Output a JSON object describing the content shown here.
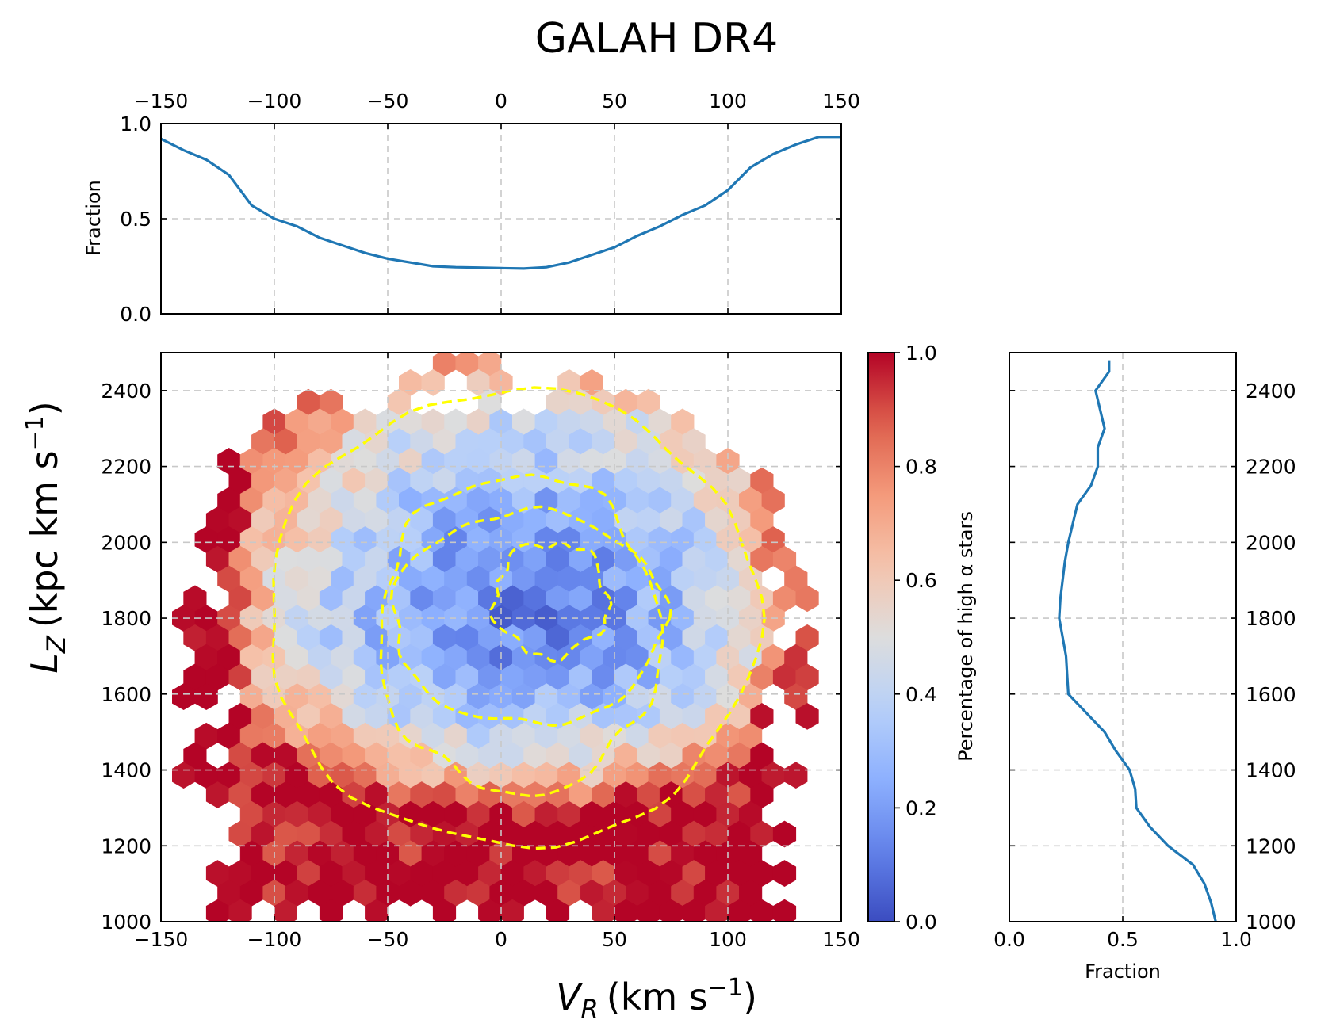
{
  "chart_data": [
    {
      "panel": "top-marginal",
      "type": "line",
      "title": "GALAH DR4",
      "xlabel": "",
      "ylabel": "Fraction",
      "xlim": [
        -150,
        150
      ],
      "ylim": [
        0,
        1
      ],
      "x_ticks": [
        "−150",
        "−100",
        "−50",
        "0",
        "50",
        "100",
        "150"
      ],
      "y_ticks": [
        "0.0",
        "0.5",
        "1.0"
      ],
      "grid": true,
      "color": "#1f77b4",
      "x": [
        -150,
        -140,
        -130,
        -120,
        -110,
        -100,
        -90,
        -80,
        -70,
        -60,
        -50,
        -40,
        -30,
        -20,
        -10,
        0,
        10,
        20,
        30,
        40,
        50,
        60,
        70,
        80,
        90,
        100,
        110,
        120,
        130,
        140,
        150
      ],
      "y": [
        0.92,
        0.86,
        0.81,
        0.73,
        0.57,
        0.5,
        0.46,
        0.4,
        0.36,
        0.32,
        0.29,
        0.27,
        0.25,
        0.245,
        0.243,
        0.24,
        0.238,
        0.245,
        0.27,
        0.31,
        0.35,
        0.41,
        0.46,
        0.52,
        0.57,
        0.65,
        0.77,
        0.84,
        0.89,
        0.93,
        0.93
      ]
    },
    {
      "panel": "main-hexbin",
      "type": "heatmap",
      "xlabel": "V",
      "xlabel_sub": "R",
      "xlabel_unit": "(km s",
      "xlabel_exp": "−1",
      "ylabel": "L",
      "ylabel_sub": "Z",
      "ylabel_unit": "(kpc km s",
      "ylabel_exp": "−1",
      "xlim": [
        -150,
        150
      ],
      "ylim": [
        1000,
        2500
      ],
      "x_ticks": [
        "−150",
        "−100",
        "−50",
        "0",
        "50",
        "100",
        "150"
      ],
      "y_ticks": [
        "1000",
        "1200",
        "1400",
        "1600",
        "1800",
        "2000",
        "2200",
        "2400"
      ],
      "grid": true,
      "colormap": "coolwarm",
      "colorbar_label": "Percentage of high α stars",
      "colorbar_ticks": [
        "0.0",
        "0.2",
        "0.4",
        "0.6",
        "0.8",
        "1.0"
      ],
      "clim": [
        0,
        1
      ],
      "hex_size_kms": 10,
      "fraction_model": "fraction rises from ~0.15 at (V_R=10, L_Z=1800) outward; >0.8 below L_Z=1250 and at |V_R|>120",
      "contour_color": "#ffff00",
      "contour_levels": 4
    },
    {
      "panel": "right-marginal",
      "type": "line",
      "xlabel": "Fraction",
      "xlim": [
        0,
        1
      ],
      "ylim": [
        1000,
        2500
      ],
      "x_ticks": [
        "0.0",
        "0.5",
        "1.0"
      ],
      "y_ticks": [
        "1000",
        "1200",
        "1400",
        "1600",
        "1800",
        "2000",
        "2200",
        "2400"
      ],
      "grid": true,
      "color": "#1f77b4",
      "y": [
        1000,
        1050,
        1100,
        1150,
        1200,
        1250,
        1300,
        1350,
        1400,
        1450,
        1500,
        1550,
        1600,
        1650,
        1700,
        1750,
        1800,
        1850,
        1900,
        1950,
        2000,
        2050,
        2100,
        2150,
        2200,
        2250,
        2300,
        2350,
        2400,
        2450,
        2480
      ],
      "x": [
        0.91,
        0.89,
        0.86,
        0.81,
        0.7,
        0.62,
        0.56,
        0.555,
        0.53,
        0.47,
        0.42,
        0.34,
        0.26,
        0.255,
        0.25,
        0.235,
        0.22,
        0.225,
        0.235,
        0.245,
        0.26,
        0.28,
        0.3,
        0.36,
        0.39,
        0.39,
        0.42,
        0.4,
        0.38,
        0.44,
        0.44
      ]
    }
  ]
}
